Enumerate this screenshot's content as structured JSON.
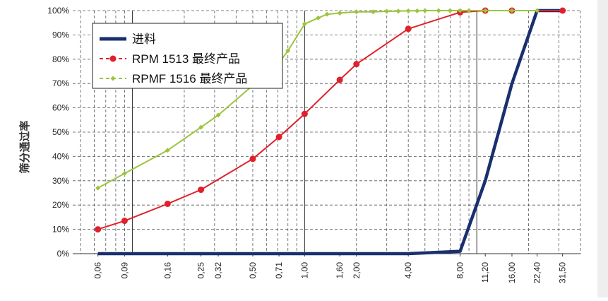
{
  "chart_data": {
    "type": "line",
    "ylabel": "筛分通过率",
    "xlabel": "",
    "ylim": [
      0,
      100
    ],
    "grid": true,
    "legend_placement": "top-left",
    "y_tick_labels": [
      "0%",
      "10%",
      "20%",
      "30%",
      "40%",
      "50%",
      "60%",
      "70%",
      "80%",
      "90%",
      "100%"
    ],
    "categories": [
      "0,06",
      "0,09",
      "0,16",
      "0,25",
      "0,32",
      "0,50",
      "0,71",
      "1,00",
      "1,60",
      "2,00",
      "4,00",
      "8,00",
      "11,20",
      "16,00",
      "22,40",
      "31,50"
    ],
    "x": [
      0.063,
      0.09,
      0.16,
      0.25,
      0.315,
      0.5,
      0.71,
      1.0,
      1.6,
      2.0,
      4.0,
      8.0,
      11.2,
      16.0,
      22.4,
      31.5
    ],
    "series": [
      {
        "name": "进料",
        "color": "#1a2f6e",
        "marker": "none",
        "x": [
          0.063,
          4.0,
          8.0,
          11.2,
          16.0,
          22.4,
          31.5
        ],
        "values": [
          0,
          0,
          1,
          30,
          70,
          100,
          100
        ]
      },
      {
        "name": "RPM 1513 最终产品",
        "color": "#e0202a",
        "marker": "circle",
        "x": [
          0.063,
          0.09,
          0.16,
          0.25,
          0.5,
          0.71,
          1.0,
          1.6,
          2.0,
          4.0,
          8.0,
          11.2,
          16.0,
          31.5
        ],
        "values": [
          10,
          13.5,
          20.5,
          26.3,
          39,
          48,
          57.5,
          71.5,
          78,
          92.5,
          99.3,
          100,
          100,
          100
        ]
      },
      {
        "name": "RPMF 1516 最终产品",
        "color": "#9cc43c",
        "marker": "diamond",
        "x": [
          0.063,
          0.09,
          0.16,
          0.25,
          0.315,
          0.71,
          0.8,
          1.0,
          1.2,
          1.35,
          1.6,
          2.0,
          2.5,
          3.0,
          3.5,
          4.0,
          4.5,
          5.0,
          6.0,
          7.0,
          8.0,
          9.0,
          11.2,
          16.0,
          22.4
        ],
        "values": [
          27,
          33,
          42.5,
          52,
          57,
          78.5,
          83.5,
          94.5,
          97,
          98.5,
          99,
          99.5,
          99.5,
          99.7,
          99.8,
          99.9,
          99.9,
          100,
          100,
          100,
          100,
          100,
          100,
          100,
          100
        ]
      }
    ]
  }
}
